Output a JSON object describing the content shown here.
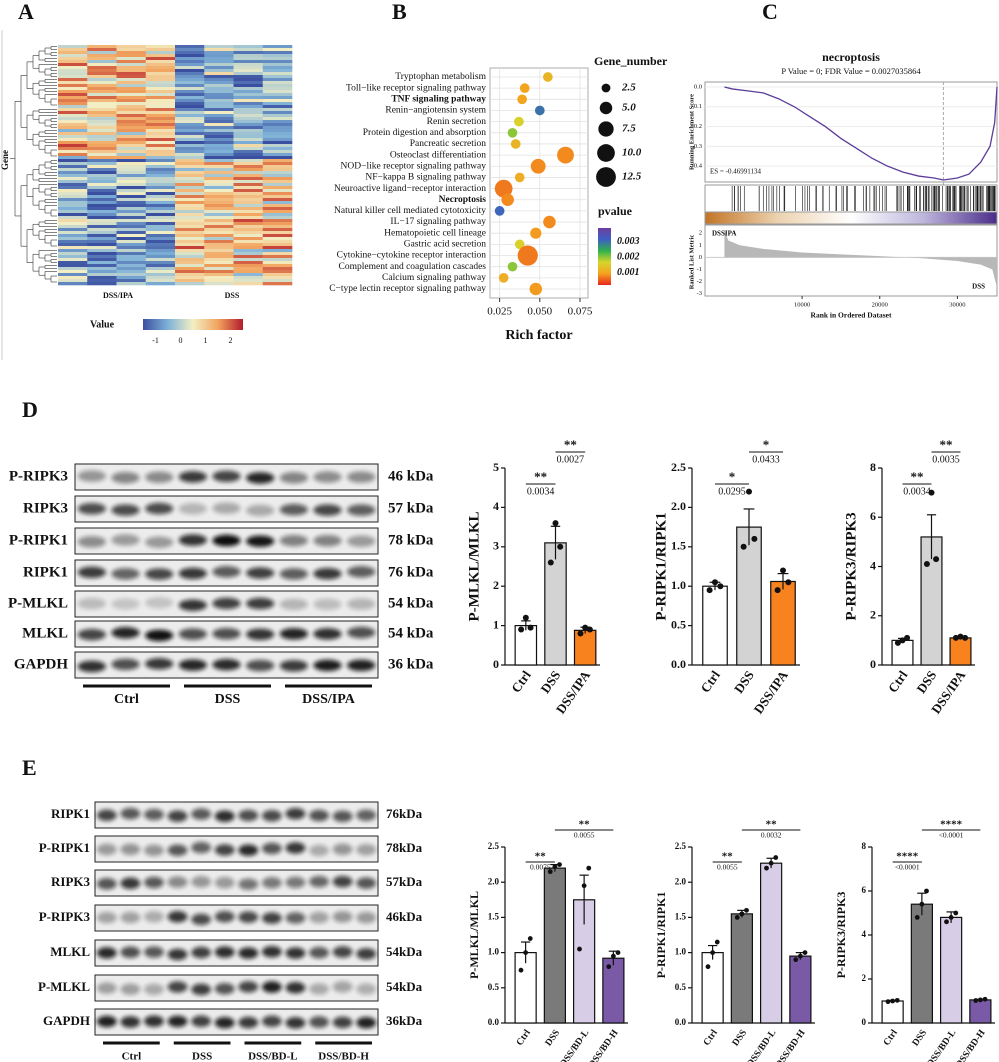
{
  "panel_labels": [
    "A",
    "B",
    "C",
    "D",
    "E"
  ],
  "heatmap": {
    "row_label": "Gene",
    "groups": [
      "DSS/IPA",
      "DSS"
    ],
    "colorbar_title": "Value",
    "colorbar_ticks": [
      -1,
      0,
      1,
      2
    ],
    "colorbar_lim": [
      -1.5,
      2.5
    ],
    "colors": [
      "#3b4fa0",
      "#7fb2d8",
      "#f3efc4",
      "#f2a35e",
      "#b31b2c"
    ]
  },
  "blots": [
    {
      "groups": [
        "Ctrl",
        "DSS",
        "DSS/IPA"
      ],
      "lanes_per_group": 3,
      "rows": [
        {
          "label": "P-RIPK3",
          "size": "46 kDa",
          "intensity": [
            0.45,
            0.85,
            0.45
          ]
        },
        {
          "label": "RIPK3",
          "size": "57 kDa",
          "intensity": [
            0.75,
            0.3,
            0.7
          ]
        },
        {
          "label": "P-RIPK1",
          "size": "78 kDa",
          "intensity": [
            0.4,
            0.95,
            0.45
          ]
        },
        {
          "label": "RIPK1",
          "size": "76 kDa",
          "intensity": [
            0.75,
            0.75,
            0.75
          ]
        },
        {
          "label": "P-MLKL",
          "size": "54 kDa",
          "intensity": [
            0.2,
            0.85,
            0.25
          ]
        },
        {
          "label": "MLKL",
          "size": "54 kDa",
          "intensity": [
            0.9,
            0.8,
            0.85
          ]
        },
        {
          "label": "GAPDH",
          "size": "36 kDa",
          "intensity": [
            0.85,
            0.85,
            0.85
          ]
        }
      ]
    },
    {
      "groups": [
        "Ctrl",
        "DSS",
        "DSS/BD-L",
        "DSS/BD-H"
      ],
      "lanes_per_group": 3,
      "rows": [
        {
          "label": "RIPK1",
          "size": "76kDa",
          "intensity": [
            0.7,
            0.8,
            0.8,
            0.7
          ]
        },
        {
          "label": "P-RIPK1",
          "size": "78kDa",
          "intensity": [
            0.4,
            0.7,
            0.8,
            0.35
          ]
        },
        {
          "label": "RIPK3",
          "size": "57kDa",
          "intensity": [
            0.8,
            0.4,
            0.55,
            0.75
          ]
        },
        {
          "label": "P-RIPK3",
          "size": "46kDa",
          "intensity": [
            0.35,
            0.8,
            0.7,
            0.4
          ]
        },
        {
          "label": "MLKL",
          "size": "54kDa",
          "intensity": [
            0.8,
            0.85,
            0.85,
            0.8
          ]
        },
        {
          "label": "P-MLKL",
          "size": "54kDa",
          "intensity": [
            0.35,
            0.8,
            0.85,
            0.3
          ]
        },
        {
          "label": "GAPDH",
          "size": "36kDa",
          "intensity": [
            0.85,
            0.85,
            0.85,
            0.85
          ]
        }
      ]
    }
  ],
  "chart_data": [
    {
      "type": "bubble",
      "categories": [
        "Tryptophan metabolism",
        "Toll−like receptor signaling pathway",
        "TNF signaling pathway",
        "Renin−angiotensin system",
        "Renin secretion",
        "Protein digestion and absorption",
        "Pancreatic secretion",
        "Osteoclast differentiation",
        "NOD−like receptor signaling pathway",
        "NF−kappa B signaling pathway",
        "Neuroactive ligand−receptor interaction",
        "Necroptosis",
        "Natural killer cell mediated cytotoxicity",
        "IL−17 signaling pathway",
        "Hematopoietic cell lineage",
        "Gastric acid secretion",
        "Cytokine−cytokine receptor interaction",
        "Complement and coagulation cascades",
        "Calcium signaling pathway",
        "C−type lectin receptor signaling pathway"
      ],
      "x": [
        0.055,
        0.0406,
        0.039,
        0.05,
        0.037,
        0.033,
        0.035,
        0.066,
        0.049,
        0.0375,
        0.0275,
        0.03,
        0.025,
        0.056,
        0.0475,
        0.0375,
        0.0425,
        0.033,
        0.0275,
        0.0475
      ],
      "sizes": [
        3,
        3,
        3,
        3,
        3,
        3,
        3,
        9,
        7,
        3,
        10,
        5,
        3,
        5,
        4,
        3,
        13,
        3,
        3,
        5
      ],
      "pvalues": [
        0.0012,
        0.001,
        0.001,
        0.003,
        0.0016,
        0.002,
        0.0012,
        0.0008,
        0.0008,
        0.0011,
        0.0007,
        0.0008,
        0.0031,
        0.0008,
        0.0009,
        0.0016,
        0.0007,
        0.002,
        0.0011,
        0.0009
      ],
      "xlim": [
        0.019,
        0.08
      ],
      "xticks": [
        0.025,
        {
          "value": 0.05,
          "label": "0.050"
        },
        0.075
      ],
      "xlabel": "Rich factor",
      "grid": true,
      "highlight": [
        2,
        11
      ],
      "highlight_color": "#c0282d",
      "size_legend": {
        "title": "Gene_number",
        "values": [
          2.5,
          {
            "value": 5,
            "label": "5.0"
          },
          7.5,
          {
            "value": 10,
            "label": "10.0"
          },
          12.5
        ]
      },
      "color_legend": {
        "title": "pvalue",
        "ticks": [
          0.003,
          0.002,
          0.001
        ],
        "colorlim": [
          0.0002,
          0.0039
        ],
        "colors": [
          "#e8251c",
          "#f4a21f",
          "#d6d62c",
          "#2fb24b",
          "#3f5fc4",
          "#6b3fa0"
        ]
      }
    },
    {
      "type": "gsea",
      "title": "necroptosis",
      "subtitle": "P Value = 0; FDR Value = 0.0027035864",
      "ylabel": "Running Enrichment Score",
      "annotation": "ES = -0.46991134",
      "color": "#5b3c9a",
      "x": [
        0,
        1000,
        3000,
        5000,
        7000,
        9000,
        11000,
        13000,
        15000,
        17000,
        19000,
        21000,
        23000,
        25000,
        27000,
        28200,
        30000,
        31500,
        33000,
        34200,
        34800,
        35100
      ],
      "values": [
        0,
        -0.01,
        -0.02,
        -0.03,
        -0.06,
        -0.1,
        -0.15,
        -0.2,
        -0.26,
        -0.31,
        -0.36,
        -0.4,
        -0.43,
        -0.45,
        -0.46,
        -0.47,
        -0.46,
        -0.44,
        -0.38,
        -0.3,
        -0.18,
        0
      ],
      "xlim": [
        -2500,
        35100
      ],
      "ylim": [
        -0.48,
        0.025
      ],
      "yticks": [
        {
          "value": 0,
          "label": "0.0"
        },
        -0.1,
        -0.2,
        -0.3,
        -0.4
      ],
      "xticks": [
        10000,
        20000,
        30000
      ],
      "xlabel": "Rank in Ordered Dataset",
      "es_x": 28200,
      "metric": {
        "ylabel": "Ranked List Metric",
        "high_label": "DSSIPA",
        "low_label": "DSS",
        "x": [
          0,
          500,
          2000,
          5000,
          10000,
          15000,
          20000,
          25000,
          30000,
          33000,
          34500,
          35100
        ],
        "values": [
          2.3,
          1.4,
          1,
          0.7,
          0.4,
          0.25,
          0.1,
          -0.05,
          -0.3,
          -0.6,
          -1,
          -2.5
        ],
        "ylim": [
          -3.2,
          2.6
        ],
        "yticks": [
          2,
          1,
          0,
          -1,
          -2,
          -3
        ]
      }
    },
    {
      "type": "bar",
      "ylabel": "P-MLKL/MLKL",
      "categories": [
        "Ctrl",
        "DSS",
        "DSS/IPA"
      ],
      "values": [
        1,
        3.1,
        0.88
      ],
      "errors": [
        0.12,
        0.42,
        0.08
      ],
      "points": [
        [
          0.9,
          1.2,
          0.95
        ],
        [
          2.6,
          3.6,
          3.0
        ],
        [
          0.8,
          0.95,
          0.9
        ]
      ],
      "colors": [
        "#ffffff",
        "#d3d3d3",
        "#f7821e"
      ],
      "ylim": [
        0,
        5
      ],
      "yticks": [
        0,
        1,
        2,
        3,
        4,
        5
      ],
      "annotations": [
        {
          "from": 0,
          "to": 1,
          "stars": "**",
          "p": 0.0034
        },
        {
          "from": 1,
          "to": 2,
          "stars": "**",
          "p": 0.0027
        }
      ]
    },
    {
      "type": "bar",
      "ylabel": "P-RIPK1/RIPK1",
      "categories": [
        "Ctrl",
        "DSS",
        "DSS/IPA"
      ],
      "values": [
        1,
        1.75,
        1.06
      ],
      "errors": [
        0.05,
        0.23,
        0.1
      ],
      "points": [
        [
          0.95,
          1.05,
          1.0
        ],
        [
          1.5,
          2.2,
          1.6
        ],
        [
          0.95,
          1.2,
          1.05
        ]
      ],
      "colors": [
        "#ffffff",
        "#d3d3d3",
        "#f7821e"
      ],
      "ylim": [
        0,
        2.5
      ],
      "yticks": [
        {
          "value": 0,
          "label": "0.0"
        },
        0.5,
        {
          "value": 1,
          "label": "1.0"
        },
        1.5,
        {
          "value": 2,
          "label": "2.0"
        },
        2.5
      ],
      "annotations": [
        {
          "from": 0,
          "to": 1,
          "stars": "*",
          "p": 0.0295
        },
        {
          "from": 1,
          "to": 2,
          "stars": "*",
          "p": 0.0433
        }
      ]
    },
    {
      "type": "bar",
      "ylabel": "P-RIPK3/RIPK3",
      "categories": [
        "Ctrl",
        "DSS",
        "DSS/IPA"
      ],
      "values": [
        1,
        5.2,
        1.1
      ],
      "errors": [
        0.08,
        0.9,
        0.05
      ],
      "points": [
        [
          0.9,
          1.0,
          1.1
        ],
        [
          4.1,
          7.0,
          4.3
        ],
        [
          1.1,
          1.15,
          1.1
        ]
      ],
      "colors": [
        "#ffffff",
        "#d3d3d3",
        "#f7821e"
      ],
      "ylim": [
        0,
        8
      ],
      "yticks": [
        0,
        2,
        4,
        6,
        8
      ],
      "annotations": [
        {
          "from": 0,
          "to": 1,
          "stars": "**",
          "p": 0.0034
        },
        {
          "from": 1,
          "to": 2,
          "stars": "**",
          "p": 0.0035
        }
      ]
    },
    {
      "type": "bar",
      "ylabel": "P-MLKL/MLKL",
      "categories": [
        "Ctrl",
        "DSS",
        "DSS/BD-L",
        "DSS/BD-H"
      ],
      "values": [
        1,
        2.2,
        1.75,
        0.92
      ],
      "errors": [
        0.15,
        0.05,
        0.35,
        0.1
      ],
      "points": [
        [
          0.75,
          1.0,
          1.2
        ],
        [
          2.15,
          2.22,
          2.25
        ],
        [
          1.05,
          1.95,
          2.2
        ],
        [
          0.8,
          0.95,
          1.0
        ]
      ],
      "colors": [
        "#ffffff",
        "#7a7a7a",
        "#d8cde6",
        "#7a5aa6"
      ],
      "ylim": [
        0,
        2.5
      ],
      "yticks": [
        {
          "value": 0,
          "label": "0.0"
        },
        0.5,
        {
          "value": 1,
          "label": "1.0"
        },
        1.5,
        {
          "value": 2,
          "label": "2.0"
        },
        2.5
      ],
      "annotations": [
        {
          "from": 0,
          "to": 1,
          "stars": "**",
          "p": 0.0075
        },
        {
          "from": 1,
          "to": 3,
          "stars": "**",
          "p": 0.0055
        }
      ]
    },
    {
      "type": "bar",
      "ylabel": "P-RIPK1/RIPK1",
      "categories": [
        "Ctrl",
        "DSS",
        "DSS/BD-L",
        "DSS/BD-H"
      ],
      "values": [
        1,
        1.55,
        2.27,
        0.95
      ],
      "errors": [
        0.1,
        0.05,
        0.07,
        0.05
      ],
      "points": [
        [
          0.8,
          1.0,
          1.15
        ],
        [
          1.5,
          1.55,
          1.6
        ],
        [
          2.2,
          2.27,
          2.35
        ],
        [
          0.9,
          0.95,
          1.0
        ]
      ],
      "colors": [
        "#ffffff",
        "#7a7a7a",
        "#d8cde6",
        "#7a5aa6"
      ],
      "ylim": [
        0,
        2.5
      ],
      "yticks": [
        {
          "value": 0,
          "label": "0.0"
        },
        0.5,
        {
          "value": 1,
          "label": "1.0"
        },
        1.5,
        {
          "value": 2,
          "label": "2.0"
        },
        2.5
      ],
      "annotations": [
        {
          "from": 0,
          "to": 1,
          "stars": "**",
          "p": 0.0055
        },
        {
          "from": 1,
          "to": 3,
          "stars": "**",
          "p": 0.0032
        }
      ]
    },
    {
      "type": "bar",
      "ylabel": "P-RIPK3/RIPK3",
      "categories": [
        "Ctrl",
        "DSS",
        "DSS/BD-L",
        "DSS/BD-H"
      ],
      "values": [
        1,
        5.4,
        4.8,
        1.05
      ],
      "errors": [
        0.03,
        0.5,
        0.25,
        0.03
      ],
      "points": [
        [
          0.97,
          1.0,
          1.03
        ],
        [
          4.8,
          5.4,
          6.0
        ],
        [
          4.6,
          4.8,
          5.0
        ],
        [
          1.02,
          1.05,
          1.08
        ]
      ],
      "colors": [
        "#ffffff",
        "#7a7a7a",
        "#d8cde6",
        "#7a5aa6"
      ],
      "ylim": [
        0,
        8
      ],
      "yticks": [
        0,
        2,
        4,
        6,
        8
      ],
      "annotations": [
        {
          "from": 0,
          "to": 1,
          "stars": "****",
          "p": "<0.0001"
        },
        {
          "from": 1,
          "to": 3,
          "stars": "****",
          "p": "<0.0001"
        }
      ]
    }
  ]
}
